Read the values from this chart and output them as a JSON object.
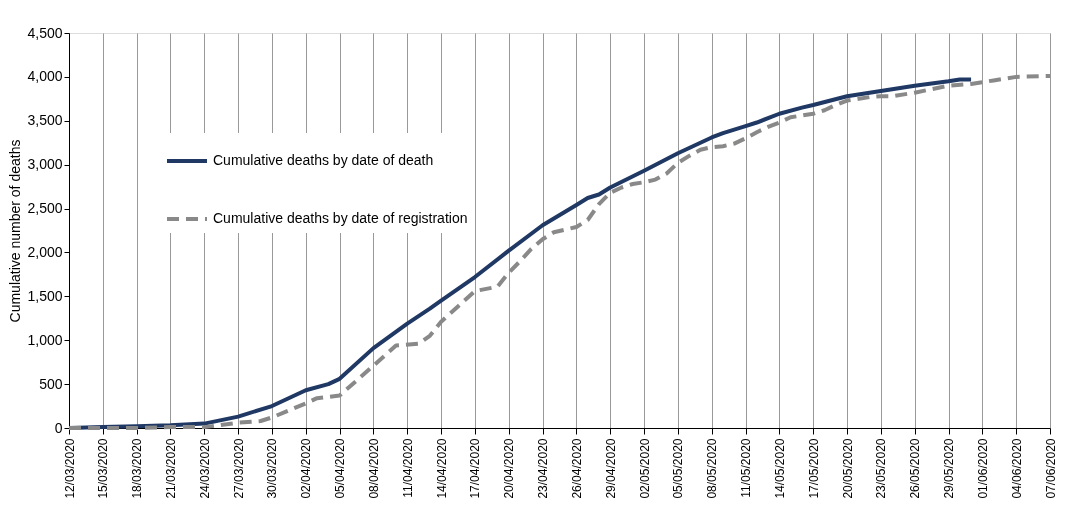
{
  "chart_data": {
    "type": "line",
    "ylabel": "Cumulative number of deaths",
    "xlim": [
      "2020-03-12",
      "2020-06-07"
    ],
    "xticks": [
      {
        "value": "2020-03-12",
        "label": "12/03/2020"
      },
      {
        "value": "2020-03-15",
        "label": "15/03/2020"
      },
      {
        "value": "2020-03-18",
        "label": "18/03/2020"
      },
      {
        "value": "2020-03-21",
        "label": "21/03/2020"
      },
      {
        "value": "2020-03-24",
        "label": "24/03/2020"
      },
      {
        "value": "2020-03-27",
        "label": "27/03/2020"
      },
      {
        "value": "2020-03-30",
        "label": "30/03/2020"
      },
      {
        "value": "2020-04-02",
        "label": "02/04/2020"
      },
      {
        "value": "2020-04-05",
        "label": "05/04/2020"
      },
      {
        "value": "2020-04-08",
        "label": "08/04/2020"
      },
      {
        "value": "2020-04-11",
        "label": "11/04/2020"
      },
      {
        "value": "2020-04-14",
        "label": "14/04/2020"
      },
      {
        "value": "2020-04-17",
        "label": "17/04/2020"
      },
      {
        "value": "2020-04-20",
        "label": "20/04/2020"
      },
      {
        "value": "2020-04-23",
        "label": "23/04/2020"
      },
      {
        "value": "2020-04-26",
        "label": "26/04/2020"
      },
      {
        "value": "2020-04-29",
        "label": "29/04/2020"
      },
      {
        "value": "2020-05-02",
        "label": "02/05/2020"
      },
      {
        "value": "2020-05-05",
        "label": "05/05/2020"
      },
      {
        "value": "2020-05-08",
        "label": "08/05/2020"
      },
      {
        "value": "2020-05-11",
        "label": "11/05/2020"
      },
      {
        "value": "2020-05-14",
        "label": "14/05/2020"
      },
      {
        "value": "2020-05-17",
        "label": "17/05/2020"
      },
      {
        "value": "2020-05-20",
        "label": "20/05/2020"
      },
      {
        "value": "2020-05-23",
        "label": "23/05/2020"
      },
      {
        "value": "2020-05-26",
        "label": "26/05/2020"
      },
      {
        "value": "2020-05-29",
        "label": "29/05/2020"
      },
      {
        "value": "2020-06-01",
        "label": "01/06/2020"
      },
      {
        "value": "2020-06-04",
        "label": "04/06/2020"
      },
      {
        "value": "2020-06-07",
        "label": "07/06/2020"
      }
    ],
    "ylim": [
      0,
      4500
    ],
    "yticks": [
      0,
      500,
      {
        "value": 1000,
        "label": "1,000"
      },
      {
        "value": 1500,
        "label": "1,500"
      },
      {
        "value": 2000,
        "label": "2,000"
      },
      {
        "value": 2500,
        "label": "2,500"
      },
      {
        "value": 3000,
        "label": "3,000"
      },
      {
        "value": 3500,
        "label": "3,500"
      },
      {
        "value": 4000,
        "label": "4,000"
      },
      {
        "value": 4500,
        "label": "4,500"
      }
    ],
    "grid": "x",
    "legend": "top left",
    "series": [
      {
        "name": "Cumulative deaths by date of death",
        "color": "#1f3864",
        "line_style": "solid",
        "x": [
          "2020-03-12",
          "2020-03-15",
          "2020-03-18",
          "2020-03-21",
          "2020-03-24",
          "2020-03-27",
          "2020-03-30",
          "2020-04-02",
          "2020-04-04",
          "2020-04-05",
          "2020-04-08",
          "2020-04-11",
          "2020-04-13",
          "2020-04-14",
          "2020-04-17",
          "2020-04-20",
          "2020-04-23",
          "2020-04-26",
          "2020-04-27",
          "2020-04-28",
          "2020-04-29",
          "2020-05-02",
          "2020-05-05",
          "2020-05-06",
          "2020-05-08",
          "2020-05-09",
          "2020-05-11",
          "2020-05-12",
          "2020-05-14",
          "2020-05-16",
          "2020-05-17",
          "2020-05-20",
          "2020-05-23",
          "2020-05-25",
          "2020-05-26",
          "2020-05-29",
          "2020-05-30",
          "2020-05-31"
        ],
        "values": [
          0,
          10,
          20,
          30,
          50,
          130,
          250,
          430,
          500,
          560,
          910,
          1190,
          1360,
          1450,
          1720,
          2020,
          2310,
          2540,
          2620,
          2660,
          2740,
          2930,
          3130,
          3190,
          3310,
          3360,
          3440,
          3480,
          3580,
          3650,
          3680,
          3780,
          3840,
          3880,
          3900,
          3950,
          3970,
          3970
        ]
      },
      {
        "name": "Cumulative deaths by date of registration",
        "color": "#898989",
        "line_style": "dashed",
        "x": [
          "2020-03-12",
          "2020-03-15",
          "2020-03-18",
          "2020-03-21",
          "2020-03-24",
          "2020-03-27",
          "2020-03-29",
          "2020-03-30",
          "2020-04-02",
          "2020-04-03",
          "2020-04-05",
          "2020-04-08",
          "2020-04-10",
          "2020-04-12",
          "2020-04-13",
          "2020-04-14",
          "2020-04-17",
          "2020-04-19",
          "2020-04-20",
          "2020-04-21",
          "2020-04-22",
          "2020-04-23",
          "2020-04-24",
          "2020-04-25",
          "2020-04-26",
          "2020-04-27",
          "2020-04-28",
          "2020-04-29",
          "2020-04-30",
          "2020-05-01",
          "2020-05-02",
          "2020-05-03",
          "2020-05-04",
          "2020-05-05",
          "2020-05-06",
          "2020-05-07",
          "2020-05-08",
          "2020-05-09",
          "2020-05-10",
          "2020-05-11",
          "2020-05-12",
          "2020-05-13",
          "2020-05-14",
          "2020-05-15",
          "2020-05-16",
          "2020-05-17",
          "2020-05-18",
          "2020-05-19",
          "2020-05-20",
          "2020-05-22",
          "2020-05-23",
          "2020-05-24",
          "2020-05-26",
          "2020-05-29",
          "2020-05-31",
          "2020-06-02",
          "2020-06-04",
          "2020-06-07"
        ],
        "values": [
          0,
          0,
          0,
          10,
          10,
          60,
          80,
          120,
          280,
          340,
          370,
          710,
          940,
          960,
          1050,
          1210,
          1560,
          1610,
          1770,
          1900,
          2040,
          2150,
          2230,
          2260,
          2290,
          2370,
          2550,
          2680,
          2740,
          2780,
          2800,
          2830,
          2900,
          3020,
          3100,
          3170,
          3200,
          3210,
          3240,
          3300,
          3370,
          3430,
          3480,
          3540,
          3560,
          3580,
          3620,
          3680,
          3730,
          3770,
          3780,
          3780,
          3820,
          3900,
          3920,
          3960,
          4000,
          4010
        ]
      }
    ]
  }
}
